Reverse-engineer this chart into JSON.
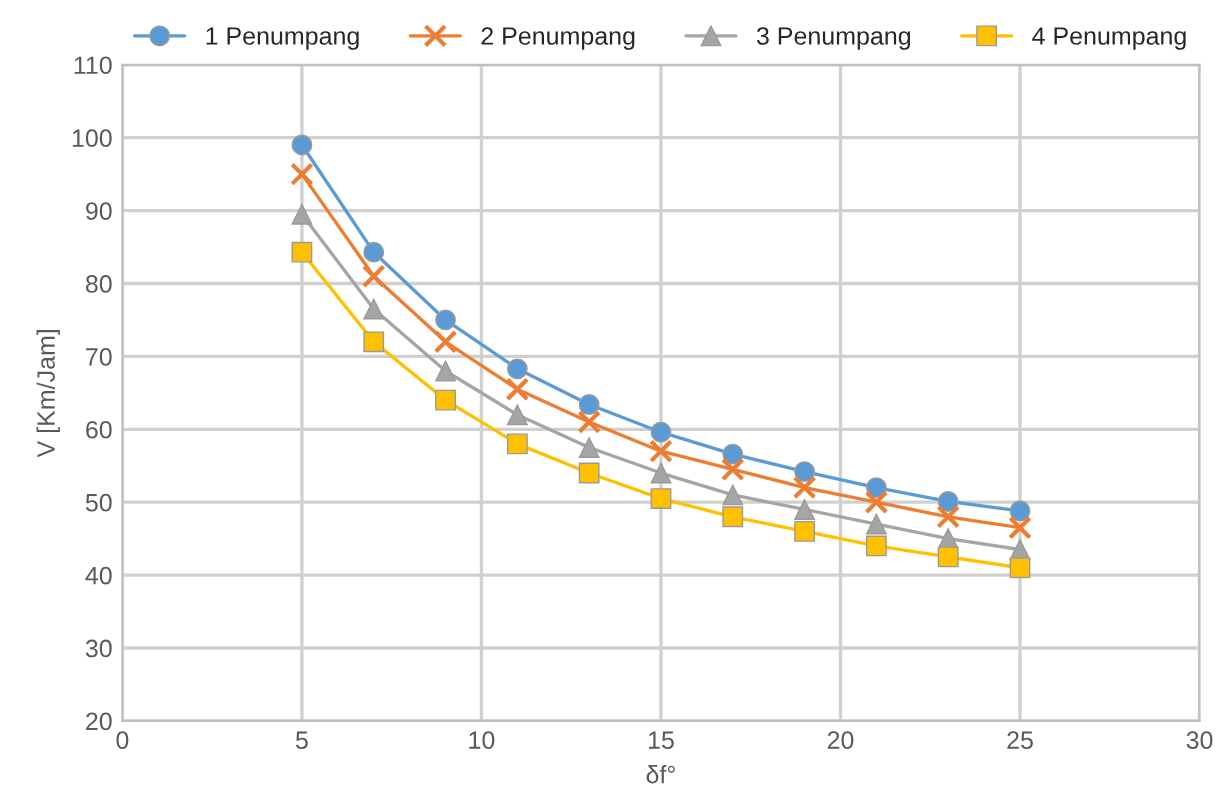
{
  "chart_data": {
    "type": "line",
    "xlabel": "δf°",
    "ylabel": "V [Km/Jam]",
    "x": [
      5,
      7,
      9,
      11,
      13,
      15,
      17,
      19,
      21,
      23,
      25
    ],
    "series": [
      {
        "name": "1 Penumpang",
        "color": "#5b9bd5",
        "marker": "circle",
        "values": [
          99,
          84.3,
          75,
          68.3,
          63.4,
          59.6,
          56.6,
          54.2,
          52,
          50.1,
          48.8
        ]
      },
      {
        "name": "2 Penumpang",
        "color": "#ed7d31",
        "marker": "cross",
        "values": [
          95,
          81,
          72,
          65.5,
          61,
          57,
          54.5,
          52,
          50,
          48,
          46.5
        ]
      },
      {
        "name": "3 Penumpang",
        "color": "#a5a5a5",
        "marker": "triangle",
        "values": [
          89.5,
          76.5,
          68,
          62,
          57.5,
          54,
          51,
          49,
          47,
          45,
          43.5
        ]
      },
      {
        "name": "4 Penumpang",
        "color": "#ffc000",
        "marker": "square",
        "values": [
          84.3,
          72,
          64,
          58,
          54,
          50.5,
          48,
          46,
          44,
          42.5,
          41
        ]
      }
    ],
    "xlim": [
      0,
      30
    ],
    "xticks": [
      0,
      5,
      10,
      15,
      20,
      25,
      30
    ],
    "ylim": [
      20,
      110
    ],
    "yticks": [
      20,
      30,
      40,
      50,
      60,
      70,
      80,
      90,
      100,
      110
    ],
    "grid": true,
    "legend": "top",
    "line_style": "solid"
  }
}
